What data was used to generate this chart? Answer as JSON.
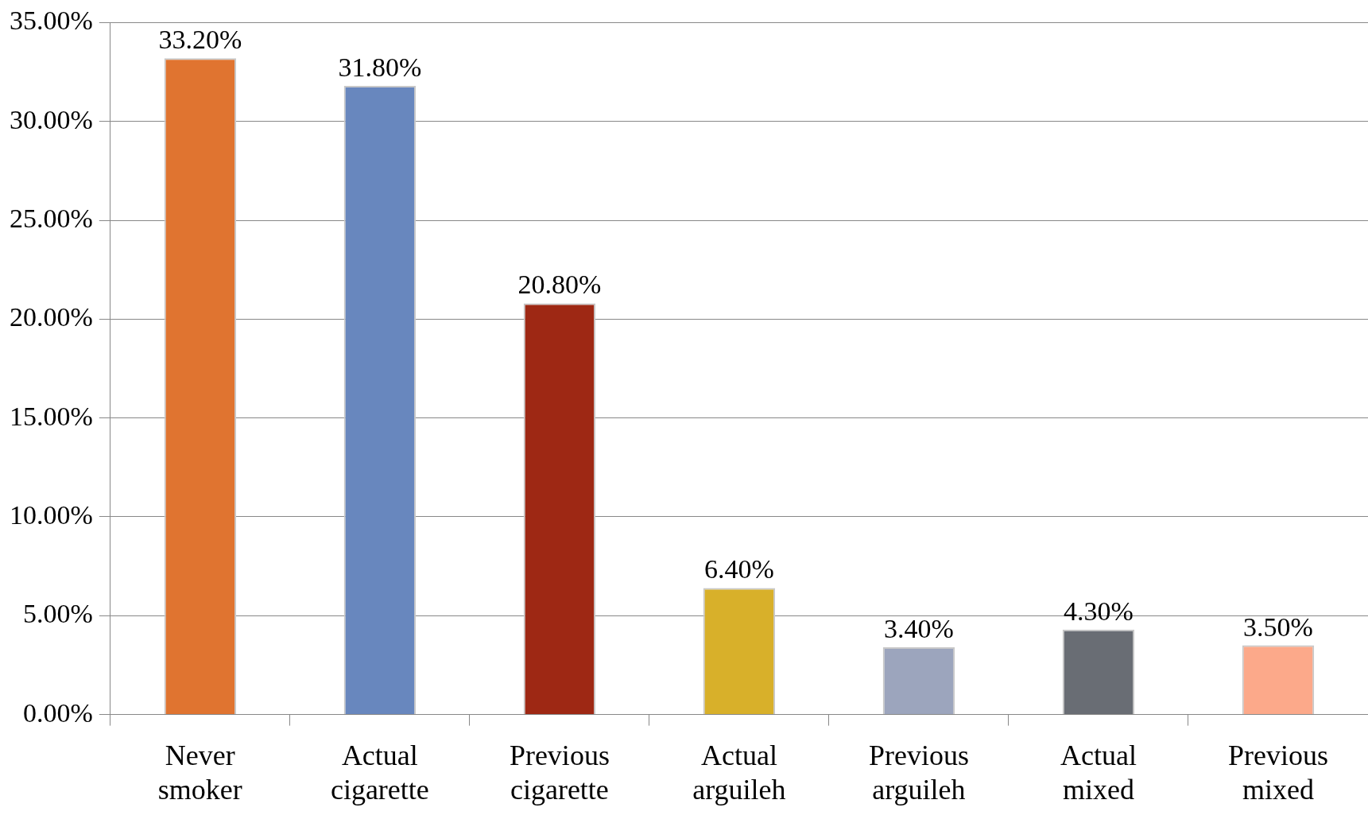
{
  "chart_data": {
    "type": "bar",
    "categories": [
      "Never smoker",
      "Actual cigarette",
      "Previous cigarette",
      "Actual arguileh",
      "Previous arguileh",
      "Actual mixed",
      "Previous mixed"
    ],
    "values": [
      33.2,
      31.8,
      20.8,
      6.4,
      3.4,
      4.3,
      3.5
    ],
    "colors": [
      "#e07430",
      "#6887be",
      "#9e2814",
      "#d8b02a",
      "#9ca5bd",
      "#696d74",
      "#fca98a"
    ],
    "value_labels": [
      "33.20%",
      "31.80%",
      "20.80%",
      "6.40%",
      "3.40%",
      "4.30%",
      "3.50%"
    ],
    "ylim": [
      0,
      35
    ],
    "yticks": [
      {
        "value": 0,
        "label": "0.00%"
      },
      {
        "value": 5,
        "label": "5.00%"
      },
      {
        "value": 10,
        "label": "10.00%"
      },
      {
        "value": 15,
        "label": "15.00%"
      },
      {
        "value": 20,
        "label": "20.00%"
      },
      {
        "value": 25,
        "label": "25.00%"
      },
      {
        "value": 30,
        "label": "30.00%"
      },
      {
        "value": 35,
        "label": "35.00%"
      }
    ],
    "grid": "y",
    "legend": false
  }
}
